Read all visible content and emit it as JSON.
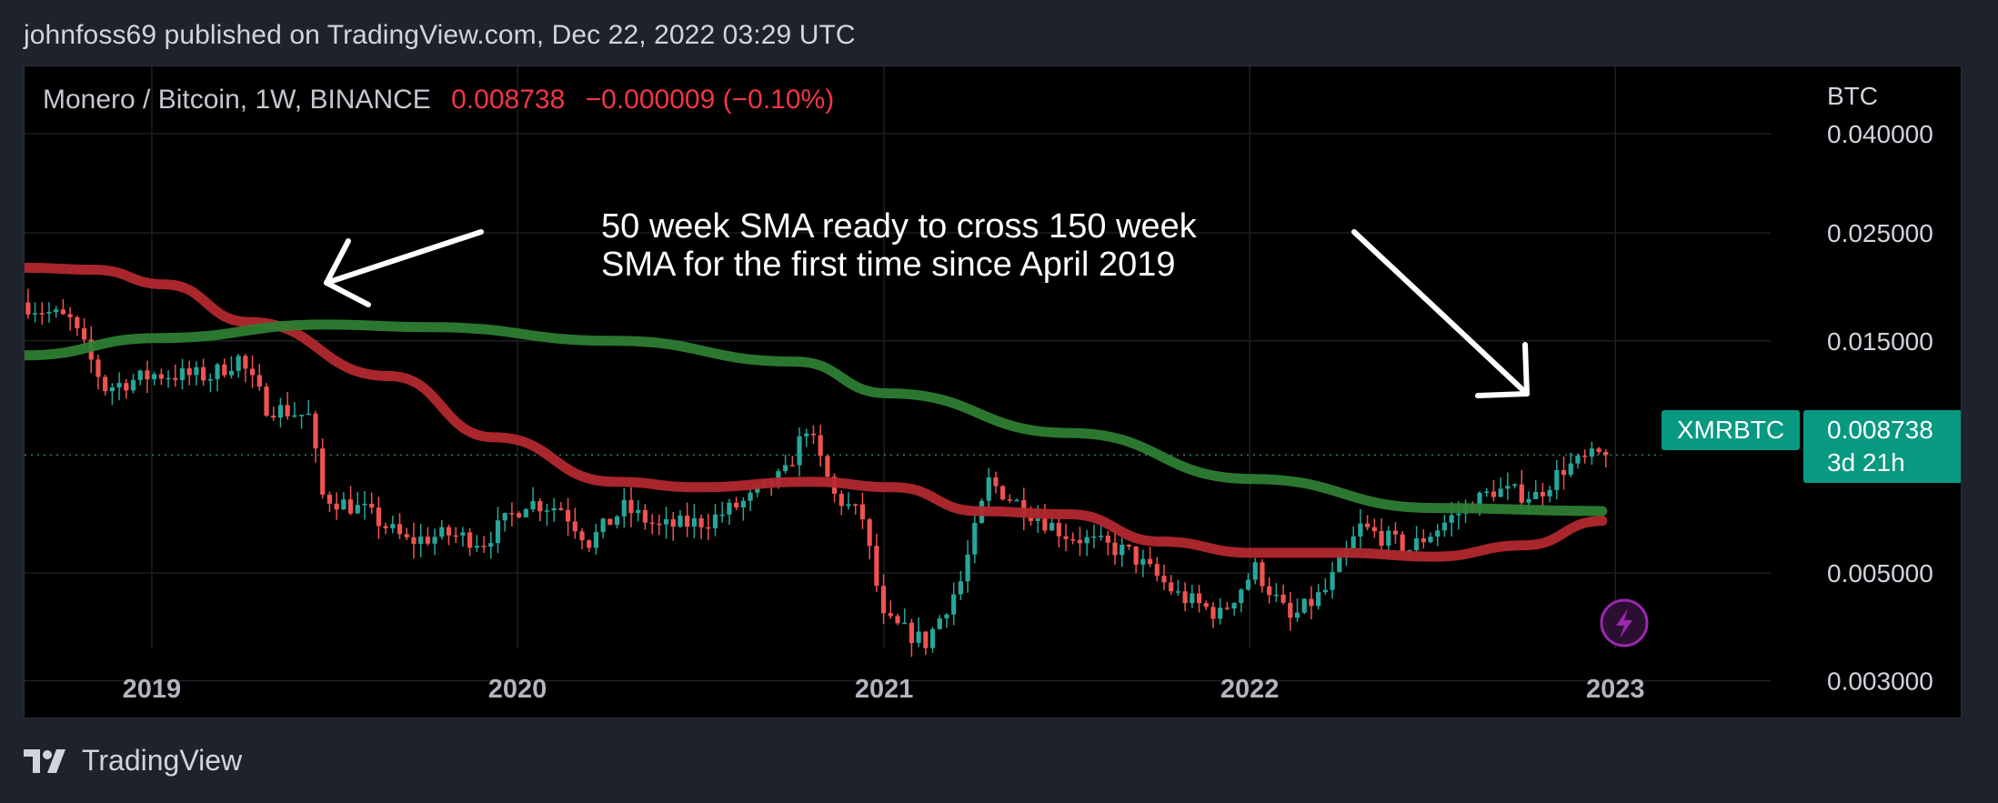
{
  "header": {
    "published": "johnfoss69 published on TradingView.com, Dec 22, 2022 03:29 UTC"
  },
  "legend": {
    "symbol": "Monero / Bitcoin, 1W, BINANCE",
    "price": "0.008738",
    "change": "−0.000009 (−0.10%)"
  },
  "annotation": {
    "line1": "50 week SMA ready to cross 150 week",
    "line2": "SMA for the first time since April 2019"
  },
  "price_tag": {
    "ticker": "XMRBTC",
    "price": "0.008738",
    "countdown": "3d 21h"
  },
  "colors": {
    "up": "#26a69a",
    "down": "#ef5350",
    "sma50": "#b2282e",
    "sma150": "#2e7d32",
    "tag": "#089981",
    "flash": "#9c27b0"
  },
  "footer": {
    "brand": "TradingView",
    "logo_icon": "tradingview-logo-icon"
  },
  "chart_data": {
    "type": "candlestick",
    "title": "",
    "y_axis_label": "BTC",
    "y_scale": "log",
    "ylim": [
      0.0025,
      0.055
    ],
    "xlim": [
      "2018-08-27",
      "2023-06-05"
    ],
    "y_ticks": [
      {
        "value": 0.04,
        "label": "0.040000"
      },
      {
        "value": 0.025,
        "label": "0.025000"
      },
      {
        "value": 0.015,
        "label": "0.015000"
      },
      {
        "value": 0.005,
        "label": "0.005000"
      },
      {
        "value": 0.003,
        "label": "0.003000"
      }
    ],
    "x_ticks": [
      {
        "date": "2019-01-01",
        "label": "2019"
      },
      {
        "date": "2020-01-01",
        "label": "2020"
      },
      {
        "date": "2021-01-01",
        "label": "2021"
      },
      {
        "date": "2022-01-01",
        "label": "2022"
      },
      {
        "date": "2023-01-01",
        "label": "2023"
      }
    ],
    "last_price": 0.008738,
    "price_series": [
      [
        "2018-08-27",
        0.018
      ],
      [
        "2018-10-15",
        0.0165
      ],
      [
        "2018-11-19",
        0.012
      ],
      [
        "2019-01-07",
        0.0128
      ],
      [
        "2019-03-04",
        0.0127
      ],
      [
        "2019-04-01",
        0.0138
      ],
      [
        "2019-04-29",
        0.011
      ],
      [
        "2019-06-10",
        0.0105
      ],
      [
        "2019-06-24",
        0.0072
      ],
      [
        "2019-08-05",
        0.0067
      ],
      [
        "2019-09-16",
        0.0058
      ],
      [
        "2019-10-28",
        0.006
      ],
      [
        "2019-12-02",
        0.0058
      ],
      [
        "2020-01-13",
        0.007
      ],
      [
        "2020-02-17",
        0.0068
      ],
      [
        "2020-03-16",
        0.0058
      ],
      [
        "2020-04-20",
        0.0068
      ],
      [
        "2020-05-25",
        0.0062
      ],
      [
        "2020-07-13",
        0.0064
      ],
      [
        "2020-08-24",
        0.0071
      ],
      [
        "2020-09-28",
        0.008
      ],
      [
        "2020-10-19",
        0.01
      ],
      [
        "2020-11-16",
        0.0072
      ],
      [
        "2020-12-14",
        0.0065
      ],
      [
        "2021-01-04",
        0.004
      ],
      [
        "2021-02-15",
        0.0036
      ],
      [
        "2021-03-22",
        0.0048
      ],
      [
        "2021-04-19",
        0.0077
      ],
      [
        "2021-05-24",
        0.0068
      ],
      [
        "2021-07-05",
        0.006
      ],
      [
        "2021-09-06",
        0.0055
      ],
      [
        "2021-10-25",
        0.0045
      ],
      [
        "2021-12-06",
        0.0041
      ],
      [
        "2022-01-10",
        0.0051
      ],
      [
        "2022-02-14",
        0.004
      ],
      [
        "2022-03-21",
        0.0046
      ],
      [
        "2022-04-25",
        0.0062
      ],
      [
        "2022-06-13",
        0.0056
      ],
      [
        "2022-07-25",
        0.0065
      ],
      [
        "2022-09-05",
        0.0074
      ],
      [
        "2022-10-17",
        0.0072
      ],
      [
        "2022-11-14",
        0.0082
      ],
      [
        "2022-12-19",
        0.008738
      ]
    ],
    "series": [
      {
        "name": "",
        "kind": "sma-50",
        "points": [
          [
            "2018-08-27",
            0.0212
          ],
          [
            "2018-11-05",
            0.021
          ],
          [
            "2019-01-14",
            0.0196
          ],
          [
            "2019-04-08",
            0.0164
          ],
          [
            "2019-08-26",
            0.0127
          ],
          [
            "2019-12-09",
            0.0095
          ],
          [
            "2020-04-06",
            0.0077
          ],
          [
            "2020-06-29",
            0.0075
          ],
          [
            "2020-10-19",
            0.0077
          ],
          [
            "2021-01-11",
            0.0075
          ],
          [
            "2021-04-05",
            0.0067
          ],
          [
            "2021-07-05",
            0.0066
          ],
          [
            "2021-10-04",
            0.0058
          ],
          [
            "2022-01-03",
            0.0055
          ],
          [
            "2022-04-04",
            0.0055
          ],
          [
            "2022-07-04",
            0.0054
          ],
          [
            "2022-10-03",
            0.0057
          ],
          [
            "2022-12-19",
            0.0064
          ]
        ]
      },
      {
        "name": "",
        "kind": "sma-150",
        "points": [
          [
            "2018-08-27",
            0.014
          ],
          [
            "2019-01-07",
            0.0152
          ],
          [
            "2019-06-24",
            0.0162
          ],
          [
            "2019-10-07",
            0.016
          ],
          [
            "2020-04-06",
            0.015
          ],
          [
            "2020-10-05",
            0.0136
          ],
          [
            "2021-01-04",
            0.0117
          ],
          [
            "2021-07-05",
            0.0097
          ],
          [
            "2022-01-03",
            0.0078
          ],
          [
            "2022-07-04",
            0.0068
          ],
          [
            "2022-12-19",
            0.0067
          ]
        ]
      }
    ]
  }
}
